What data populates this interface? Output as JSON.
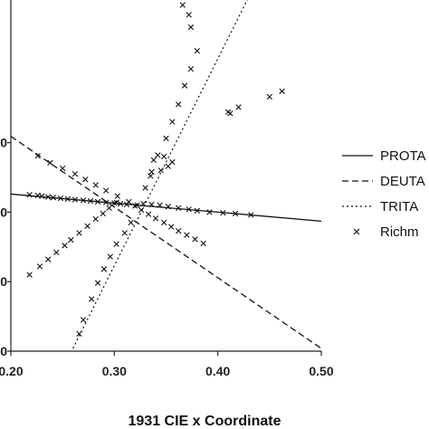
{
  "chart_data": {
    "type": "line",
    "xlabel": "1931 CIE x Coordinate",
    "ylabel": "",
    "xlim": [
      0.2,
      0.5
    ],
    "ylim": [
      0.1,
      0.6
    ],
    "grid": false,
    "legend_position": "right",
    "x_tick_labels": [
      "0.20",
      "0.30",
      "0.40",
      "0.50"
    ],
    "x_ticks": [
      0.2,
      0.3,
      0.4,
      0.5
    ],
    "y_tick_labels": [
      "0",
      "0",
      "0",
      "0"
    ],
    "y_ticks": [
      0.1,
      0.2,
      0.3,
      0.4
    ],
    "series": [
      {
        "name": "PROTA",
        "style": "solid",
        "x": [
          0.2,
          0.5
        ],
        "y": [
          0.326,
          0.287
        ]
      },
      {
        "name": "DEUTA",
        "style": "dashed",
        "x": [
          0.2,
          0.5
        ],
        "y": [
          0.409,
          0.104
        ]
      },
      {
        "name": "TRITA",
        "style": "dotted",
        "x": [
          0.26,
          0.43
        ],
        "y": [
          0.104,
          0.61
        ]
      },
      {
        "name": "Richm",
        "style": "markers-x",
        "x": [
          0.218,
          0.226,
          0.23,
          0.236,
          0.241,
          0.248,
          0.255,
          0.262,
          0.27,
          0.277,
          0.284,
          0.292,
          0.3,
          0.306,
          0.312,
          0.226,
          0.238,
          0.25,
          0.262,
          0.272,
          0.282,
          0.292,
          0.303,
          0.314,
          0.32,
          0.326,
          0.333,
          0.34,
          0.348,
          0.355,
          0.362,
          0.37,
          0.378,
          0.386,
          0.328,
          0.336,
          0.344,
          0.352,
          0.362,
          0.372,
          0.38,
          0.392,
          0.405,
          0.417,
          0.432,
          0.218,
          0.228,
          0.236,
          0.244,
          0.252,
          0.258,
          0.266,
          0.274,
          0.282,
          0.289,
          0.295,
          0.302,
          0.266,
          0.27,
          0.278,
          0.284,
          0.29,
          0.296,
          0.302,
          0.31,
          0.316,
          0.322,
          0.33,
          0.336,
          0.342,
          0.35,
          0.356,
          0.362,
          0.368,
          0.374,
          0.38,
          0.335,
          0.345,
          0.352,
          0.338,
          0.348,
          0.356,
          0.41,
          0.42,
          0.45,
          0.462,
          0.412,
          0.374,
          0.372,
          0.366
        ],
        "y": [
          0.325,
          0.324,
          0.323,
          0.322,
          0.321,
          0.32,
          0.319,
          0.318,
          0.317,
          0.316,
          0.315,
          0.314,
          0.313,
          0.312,
          0.311,
          0.381,
          0.371,
          0.363,
          0.355,
          0.347,
          0.339,
          0.331,
          0.323,
          0.315,
          0.309,
          0.303,
          0.297,
          0.291,
          0.285,
          0.279,
          0.273,
          0.267,
          0.261,
          0.255,
          0.312,
          0.311,
          0.31,
          0.308,
          0.306,
          0.304,
          0.302,
          0.3,
          0.299,
          0.298,
          0.296,
          0.21,
          0.222,
          0.232,
          0.242,
          0.252,
          0.26,
          0.27,
          0.28,
          0.29,
          0.298,
          0.306,
          0.314,
          0.125,
          0.145,
          0.175,
          0.198,
          0.218,
          0.236,
          0.254,
          0.27,
          0.285,
          0.31,
          0.335,
          0.358,
          0.382,
          0.406,
          0.43,
          0.455,
          0.482,
          0.506,
          0.532,
          0.352,
          0.36,
          0.366,
          0.375,
          0.38,
          0.372,
          0.444,
          0.451,
          0.466,
          0.474,
          0.442,
          0.566,
          0.584,
          0.598
        ]
      }
    ]
  }
}
